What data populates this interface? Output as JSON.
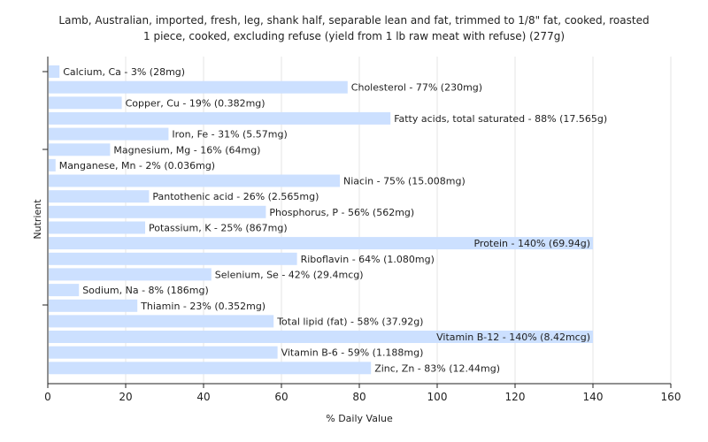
{
  "chart_data": {
    "type": "bar",
    "orientation": "horizontal",
    "title": [
      "Lamb, Australian, imported, fresh, leg, shank half, separable lean and fat, trimmed to 1/8\" fat, cooked, roasted",
      "1 piece, cooked, excluding refuse (yield from 1 lb raw meat with refuse) (277g)"
    ],
    "xlabel": "% Daily Value",
    "ylabel": "Nutrient",
    "xlim": [
      0,
      160
    ],
    "xticks": [
      0,
      20,
      40,
      60,
      80,
      100,
      120,
      140,
      160
    ],
    "grid": true,
    "bar_color": "#cce0ff",
    "categories": [
      "Calcium, Ca",
      "Cholesterol",
      "Copper, Cu",
      "Fatty acids, total saturated",
      "Iron, Fe",
      "Magnesium, Mg",
      "Manganese, Mn",
      "Niacin",
      "Pantothenic acid",
      "Phosphorus, P",
      "Potassium, K",
      "Protein",
      "Riboflavin",
      "Selenium, Se",
      "Sodium, Na",
      "Thiamin",
      "Total lipid (fat)",
      "Vitamin B-12",
      "Vitamin B-6",
      "Zinc, Zn"
    ],
    "values": [
      3,
      77,
      19,
      88,
      31,
      16,
      2,
      75,
      26,
      56,
      25,
      140,
      64,
      42,
      8,
      23,
      58,
      140,
      59,
      83
    ],
    "labels": [
      "Calcium, Ca - 3% (28mg)",
      "Cholesterol - 77% (230mg)",
      "Copper, Cu - 19% (0.382mg)",
      "Fatty acids, total saturated - 88% (17.565g)",
      "Iron, Fe - 31% (5.57mg)",
      "Magnesium, Mg - 16% (64mg)",
      "Manganese, Mn - 2% (0.036mg)",
      "Niacin - 75% (15.008mg)",
      "Pantothenic acid - 26% (2.565mg)",
      "Phosphorus, P - 56% (562mg)",
      "Potassium, K - 25% (867mg)",
      "Protein - 140% (69.94g)",
      "Riboflavin - 64% (1.080mg)",
      "Selenium, Se - 42% (29.4mcg)",
      "Sodium, Na - 8% (186mg)",
      "Thiamin - 23% (0.352mg)",
      "Total lipid (fat) - 58% (37.92g)",
      "Vitamin B-12 - 140% (8.42mcg)",
      "Vitamin B-6 - 59% (1.188mg)",
      "Zinc, Zn - 83% (12.44mg)"
    ]
  }
}
